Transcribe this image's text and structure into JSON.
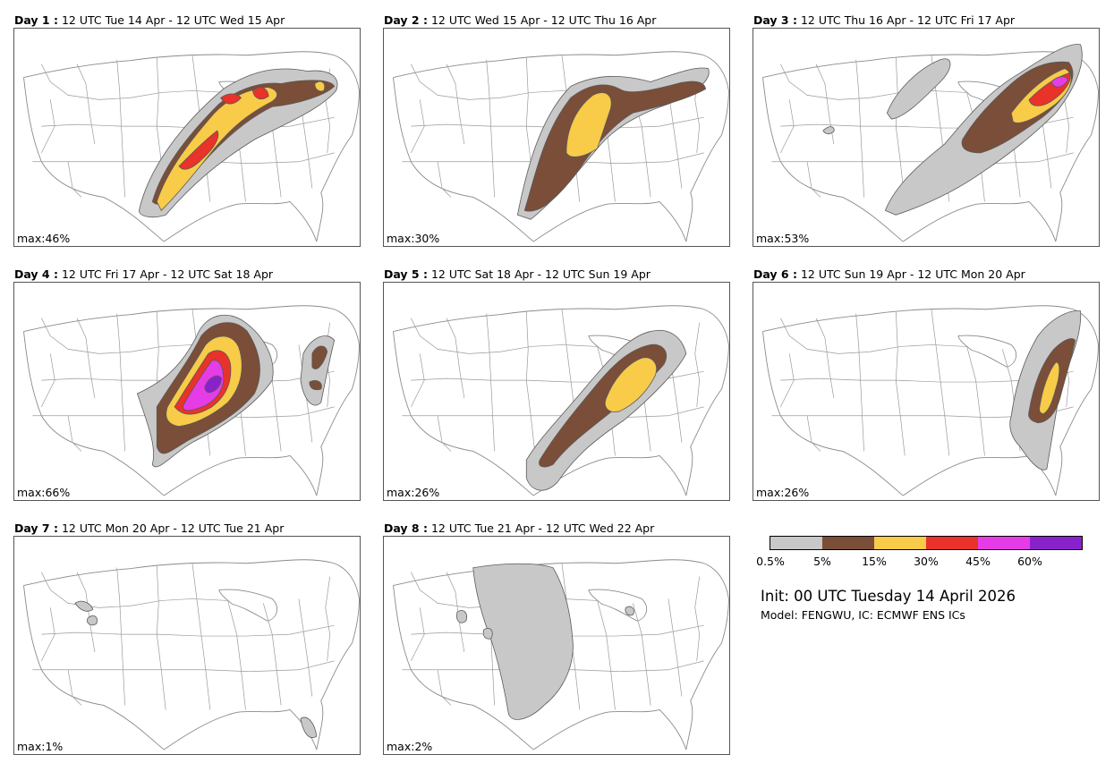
{
  "panels": [
    {
      "day_label": "Day 1 :",
      "period": "12 UTC Tue 14 Apr - 12 UTC Wed 15 Apr",
      "max_text": "max:46%",
      "max_percent": 46
    },
    {
      "day_label": "Day 2 :",
      "period": "12 UTC Wed 15 Apr - 12 UTC Thu 16 Apr",
      "max_text": "max:30%",
      "max_percent": 30
    },
    {
      "day_label": "Day 3 :",
      "period": "12 UTC Thu 16 Apr - 12 UTC Fri 17 Apr",
      "max_text": "max:53%",
      "max_percent": 53
    },
    {
      "day_label": "Day 4 :",
      "period": "12 UTC Fri 17 Apr - 12 UTC Sat 18 Apr",
      "max_text": "max:66%",
      "max_percent": 66
    },
    {
      "day_label": "Day 5 :",
      "period": "12 UTC Sat 18 Apr - 12 UTC Sun 19 Apr",
      "max_text": "max:26%",
      "max_percent": 26
    },
    {
      "day_label": "Day 6 :",
      "period": "12 UTC Sun 19 Apr - 12 UTC Mon 20 Apr",
      "max_text": "max:26%",
      "max_percent": 26
    },
    {
      "day_label": "Day 7 :",
      "period": "12 UTC Mon 20 Apr - 12 UTC Tue 21 Apr",
      "max_text": "max:1%",
      "max_percent": 1
    },
    {
      "day_label": "Day 8 :",
      "period": "12 UTC Tue 21 Apr - 12 UTC Wed 22 Apr",
      "max_text": "max:2%",
      "max_percent": 2
    }
  ],
  "legend": {
    "thresholds": [
      "0.5%",
      "5%",
      "15%",
      "30%",
      "45%",
      "60%"
    ],
    "colors": [
      "#c8c8c8",
      "#7a4e38",
      "#f8cb48",
      "#e8322a",
      "#e63ce8",
      "#8a22cc"
    ]
  },
  "init_text": "Init: 00 UTC Tuesday 14 April 2026",
  "model_text": "Model: FENGWU, IC: ECMWF ENS ICs"
}
